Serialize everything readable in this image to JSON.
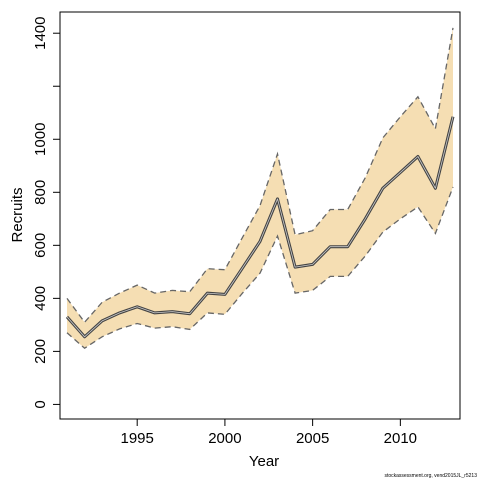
{
  "chart_data": {
    "type": "line",
    "title": "",
    "xlabel": "Year",
    "ylabel": "Recruits",
    "xlim": [
      1990.6,
      2013.4
    ],
    "ylim": [
      -55,
      1480
    ],
    "x_ticks": [
      1995,
      2000,
      2005,
      2010
    ],
    "y_ticks": [
      0,
      200,
      400,
      600,
      800,
      1000,
      1400
    ],
    "y_ticks_unlabeled": [
      1200
    ],
    "grid": false,
    "x": [
      1991,
      1992,
      1993,
      1994,
      1995,
      1996,
      1997,
      1998,
      1999,
      2000,
      2001,
      2002,
      2003,
      2004,
      2005,
      2006,
      2007,
      2008,
      2009,
      2010,
      2011,
      2012,
      2013
    ],
    "series": [
      {
        "role": "estimate",
        "values": [
          330,
          255,
          315,
          345,
          368,
          345,
          350,
          342,
          420,
          415,
          515,
          615,
          775,
          518,
          528,
          595,
          595,
          700,
          815,
          875,
          935,
          815,
          1085
        ]
      },
      {
        "role": "upper",
        "values": [
          400,
          310,
          385,
          420,
          450,
          420,
          430,
          425,
          512,
          508,
          630,
          750,
          945,
          640,
          655,
          735,
          735,
          855,
          1005,
          1085,
          1160,
          1040,
          1420
        ]
      },
      {
        "role": "lower",
        "values": [
          270,
          212,
          255,
          285,
          305,
          288,
          293,
          283,
          345,
          340,
          420,
          495,
          635,
          420,
          430,
          483,
          483,
          560,
          650,
          700,
          745,
          645,
          820
        ]
      }
    ],
    "colors": {
      "band": "#f5deb3",
      "estimate": "#444444",
      "estimate_inner": "#cccccc",
      "bounds": "#666666"
    },
    "footnote": "stockassessment.org,  vend2015JL_r5213"
  }
}
